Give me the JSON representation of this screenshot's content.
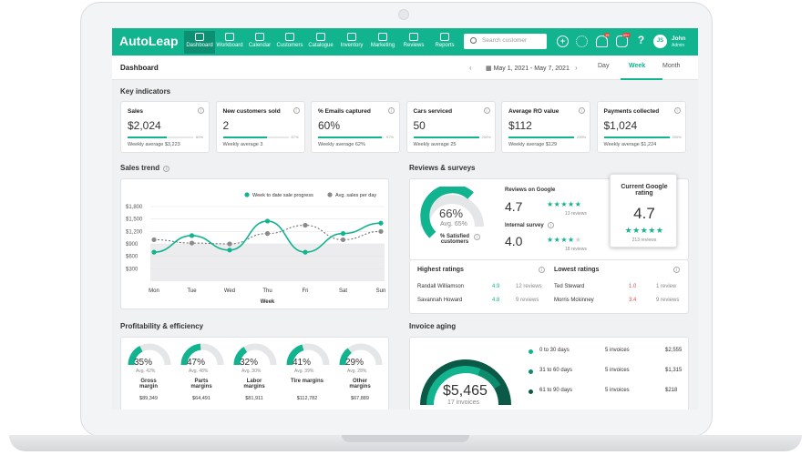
{
  "app": {
    "logo": "AutoLeap",
    "nav": [
      {
        "label": "Dashboard",
        "icon": "dashboard-icon",
        "active": true
      },
      {
        "label": "Workboard",
        "icon": "board-icon"
      },
      {
        "label": "Calendar",
        "icon": "calendar-icon"
      },
      {
        "label": "Customers",
        "icon": "customers-icon"
      },
      {
        "label": "Catalogue",
        "icon": "catalogue-icon"
      },
      {
        "label": "Inventory",
        "icon": "inventory-icon"
      },
      {
        "label": "Marketing",
        "icon": "megaphone-icon"
      },
      {
        "label": "Reviews",
        "icon": "chat-icon"
      },
      {
        "label": "Reports",
        "icon": "bar-chart-icon"
      }
    ],
    "search_placeholder": "Search customer",
    "badges": {
      "notifications": "15",
      "messages": "99+"
    },
    "user": {
      "initials": "JS",
      "name": "John",
      "role": "Admin"
    },
    "accent": "#12b38f"
  },
  "subbar": {
    "title": "Dashboard",
    "date_range": "May 1, 2021 - May 7, 2021",
    "tabs": [
      "Day",
      "Week",
      "Month"
    ],
    "active_tab": "Week"
  },
  "key_indicators": {
    "title": "Key indicators",
    "cards": [
      {
        "label": "Sales",
        "value": "$2,024",
        "progress": 0.6,
        "pct": "60%",
        "avg": "Weekly average $3,223"
      },
      {
        "label": "New customers sold",
        "value": "2",
        "progress": 0.67,
        "pct": "67%",
        "avg": "Weekly average 3"
      },
      {
        "label": "% Emails captured",
        "value": "60%",
        "progress": 0.97,
        "pct": "97%",
        "avg": "Weekly average 62%"
      },
      {
        "label": "Cars serviced",
        "value": "50",
        "progress": 1.0,
        "pct": "200%",
        "avg": "Weekly average 25"
      },
      {
        "label": "Average RO value",
        "value": "$112",
        "progress": 1.0,
        "pct": "200%",
        "avg": "Weekly average $129"
      },
      {
        "label": "Payments collected",
        "value": "$1,024",
        "progress": 1.0,
        "pct": "200%",
        "avg": "Weekly average $1,224"
      }
    ]
  },
  "sales_trend": {
    "title": "Sales trend",
    "legend_current": "Week to date sale progress",
    "legend_avg": "Avg. sales per day",
    "xlabel": "Week"
  },
  "chart_data": {
    "type": "line",
    "categories": [
      "Mon",
      "Tue",
      "Wed",
      "Thu",
      "Fri",
      "Sat",
      "Sun"
    ],
    "series": [
      {
        "name": "Week to date sale progress",
        "values": [
          700,
          1100,
          750,
          1450,
          700,
          1150,
          1400
        ]
      },
      {
        "name": "Avg. sales per day",
        "values": [
          1000,
          920,
          900,
          1150,
          1350,
          1000,
          1200
        ]
      }
    ],
    "yticks": [
      "$1,800",
      "$1,500",
      "$1,200",
      "$900",
      "$600",
      "$300"
    ],
    "ylim": [
      0,
      1800
    ],
    "xlabel": "Week"
  },
  "reviews": {
    "title": "Reviews & surveys",
    "satisfied_pct": "66%",
    "satisfied_value": 0.66,
    "satisfied_avg": "Avg. 65%",
    "satisfied_label": "% Satisfied customers",
    "google_label": "Reviews on Google",
    "google_score": "4.7",
    "google_count": "13 reviews",
    "internal_label": "Internal survey",
    "internal_score": "4.0",
    "internal_count": "18 reviews",
    "current_google_label": "Current Google rating",
    "current_google_score": "4.7",
    "current_google_count": "213 reviews",
    "highest_title": "Highest ratings",
    "lowest_title": "Lowest ratings",
    "highest": [
      {
        "name": "Randall Williamson",
        "score": "4.9",
        "reviews": "12 reviews"
      },
      {
        "name": "Savannah Howard",
        "score": "4.8",
        "reviews": "9 reviews"
      }
    ],
    "lowest": [
      {
        "name": "Ted Steward",
        "score": "1.0",
        "reviews": "1 review"
      },
      {
        "name": "Morris Mckinney",
        "score": "3.4",
        "reviews": "9 reviews"
      }
    ]
  },
  "profitability": {
    "title": "Profitability & efficiency",
    "items": [
      {
        "pct": "35%",
        "value": 0.35,
        "avg": "Avg. 42%",
        "label": "Gross margin",
        "amount": "$89,349"
      },
      {
        "pct": "47%",
        "value": 0.47,
        "avg": "Avg. 48%",
        "label": "Parts margins",
        "amount": "$64,491"
      },
      {
        "pct": "32%",
        "value": 0.32,
        "avg": "Avg. 30%",
        "label": "Labor margins",
        "amount": "$81,911"
      },
      {
        "pct": "41%",
        "value": 0.41,
        "avg": "Avg. 39%",
        "label": "Tire margins",
        "amount": "$112,782"
      },
      {
        "pct": "29%",
        "value": 0.29,
        "avg": "Avg. 28%",
        "label": "Other margins",
        "amount": "$67,889"
      }
    ]
  },
  "invoice_aging": {
    "title": "Invoice aging",
    "total": "$5,465",
    "total_label": "17 invoices",
    "rows": [
      {
        "label": "0 to 30 days",
        "count": "5 invoices",
        "amount": "$2,555",
        "color": "#12b38f"
      },
      {
        "label": "31 to 60 days",
        "count": "5 invoices",
        "amount": "$1,315",
        "color": "#0e8a6c"
      },
      {
        "label": "61 to 90 days",
        "count": "5 invoices",
        "amount": "$218",
        "color": "#0b5a47"
      }
    ]
  }
}
